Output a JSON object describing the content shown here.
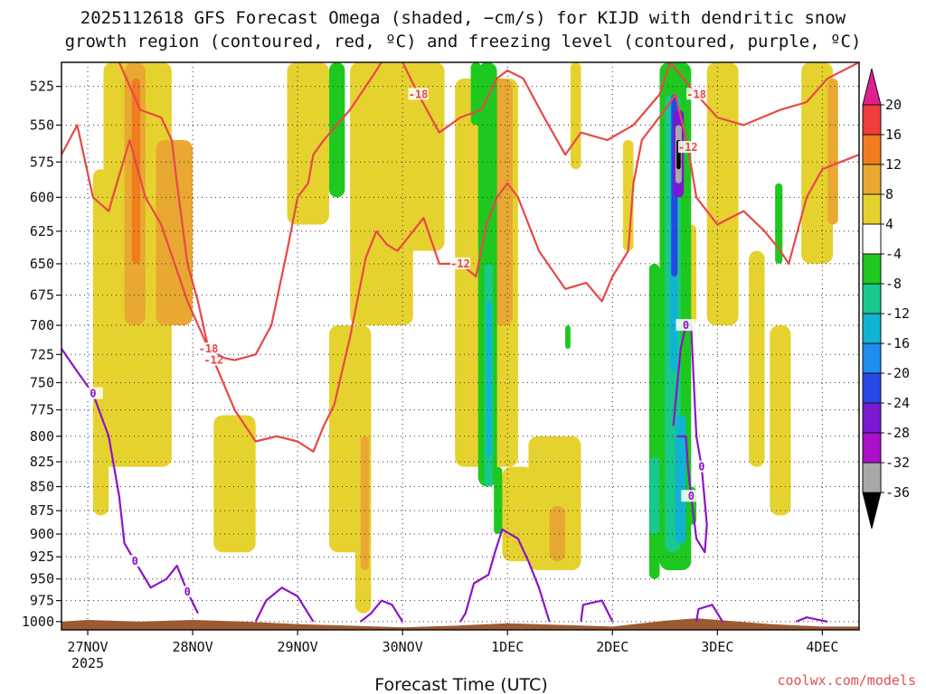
{
  "chart_data": {
    "type": "heatmap",
    "title_line1": "2025112618 GFS Forecast Omega (shaded, −cm/s) for KIJD with dendritic snow",
    "title_line2": "growth region (contoured, red, ºC) and freezing level (contoured, purple, ºC)",
    "xlabel": "Forecast Time (UTC)",
    "x_ticks": [
      "27NOV",
      "28NOV",
      "29NOV",
      "30NOV",
      "1DEC",
      "2DEC",
      "3DEC",
      "4DEC"
    ],
    "x_tick_year": "2025",
    "x_range_days": [
      -0.25,
      7.35
    ],
    "y_ticks": [
      525,
      550,
      575,
      600,
      625,
      650,
      675,
      700,
      725,
      750,
      775,
      800,
      825,
      850,
      875,
      900,
      925,
      950,
      975,
      1000
    ],
    "y_range_hpa": [
      510,
      1010
    ],
    "y_scale": "log",
    "grid": true,
    "colorbar": {
      "position": "right",
      "labels": [
        "20",
        "16",
        "12",
        "8",
        "4",
        "-4",
        "-8",
        "-12",
        "-16",
        "-20",
        "-24",
        "-28",
        "-32",
        "-36"
      ],
      "bands": [
        {
          "range": [
            16,
            20
          ],
          "color": "#f03c3c"
        },
        {
          "range": [
            12,
            16
          ],
          "color": "#f07c1e"
        },
        {
          "range": [
            8,
            12
          ],
          "color": "#e8a832"
        },
        {
          "range": [
            4,
            8
          ],
          "color": "#e6d22e"
        },
        {
          "range": [
            -4,
            4
          ],
          "color": "#ffffff"
        },
        {
          "range": [
            -8,
            -4
          ],
          "color": "#1ec81e"
        },
        {
          "range": [
            -12,
            -8
          ],
          "color": "#18c88c"
        },
        {
          "range": [
            -16,
            -12
          ],
          "color": "#10b4d2"
        },
        {
          "range": [
            -20,
            -16
          ],
          "color": "#1e8cf0"
        },
        {
          "range": [
            -24,
            -20
          ],
          "color": "#2848e6"
        },
        {
          "range": [
            -28,
            -24
          ],
          "color": "#7a18d2"
        },
        {
          "range": [
            -32,
            -28
          ],
          "color": "#aa10c8"
        },
        {
          "range": [
            -36,
            -32
          ],
          "color": "#a8a8a8"
        }
      ],
      "over_color": "#e0208c",
      "under_color": "#000000"
    },
    "omega_regions": [
      {
        "x": [
          0.05,
          0.2
        ],
        "p": [
          580,
          880
        ],
        "v": 6
      },
      {
        "x": [
          0.15,
          0.8
        ],
        "p": [
          510,
          830
        ],
        "v": 6
      },
      {
        "x": [
          0.35,
          0.55
        ],
        "p": [
          510,
          700
        ],
        "v": 10
      },
      {
        "x": [
          0.42,
          0.5
        ],
        "p": [
          520,
          650
        ],
        "v": 14
      },
      {
        "x": [
          0.65,
          1.0
        ],
        "p": [
          560,
          700
        ],
        "v": 8
      },
      {
        "x": [
          1.2,
          1.6
        ],
        "p": [
          780,
          920
        ],
        "v": 5
      },
      {
        "x": [
          1.9,
          2.3
        ],
        "p": [
          510,
          620
        ],
        "v": 5
      },
      {
        "x": [
          2.3,
          2.7
        ],
        "p": [
          700,
          920
        ],
        "v": 5
      },
      {
        "x": [
          2.5,
          3.1
        ],
        "p": [
          510,
          700
        ],
        "v": 5
      },
      {
        "x": [
          2.55,
          2.7
        ],
        "p": [
          720,
          990
        ],
        "v": 5
      },
      {
        "x": [
          2.6,
          2.68
        ],
        "p": [
          800,
          940
        ],
        "v": 9
      },
      {
        "x": [
          3.0,
          3.4
        ],
        "p": [
          510,
          640
        ],
        "v": 5
      },
      {
        "x": [
          3.5,
          4.1
        ],
        "p": [
          520,
          830
        ],
        "v": 5
      },
      {
        "x": [
          3.85,
          4.05
        ],
        "p": [
          520,
          700
        ],
        "v": 9
      },
      {
        "x": [
          3.95,
          4.25
        ],
        "p": [
          830,
          930
        ],
        "v": 5
      },
      {
        "x": [
          4.2,
          4.7
        ],
        "p": [
          800,
          940
        ],
        "v": 5
      },
      {
        "x": [
          4.4,
          4.55
        ],
        "p": [
          870,
          930
        ],
        "v": 9
      },
      {
        "x": [
          4.6,
          4.7
        ],
        "p": [
          510,
          580
        ],
        "v": 5
      },
      {
        "x": [
          5.1,
          5.2
        ],
        "p": [
          560,
          640
        ],
        "v": 5
      },
      {
        "x": [
          5.7,
          5.8
        ],
        "p": [
          620,
          700
        ],
        "v": 5
      },
      {
        "x": [
          5.9,
          6.2
        ],
        "p": [
          510,
          700
        ],
        "v": 5
      },
      {
        "x": [
          6.3,
          6.45
        ],
        "p": [
          640,
          830
        ],
        "v": 5
      },
      {
        "x": [
          6.5,
          6.7
        ],
        "p": [
          700,
          880
        ],
        "v": 5
      },
      {
        "x": [
          6.8,
          7.1
        ],
        "p": [
          510,
          650
        ],
        "v": 5
      },
      {
        "x": [
          7.05,
          7.15
        ],
        "p": [
          520,
          620
        ],
        "v": 9
      },
      {
        "x": [
          3.72,
          3.9
        ],
        "p": [
          510,
          850
        ],
        "v": -6
      },
      {
        "x": [
          3.78,
          3.86
        ],
        "p": [
          650,
          850
        ],
        "v": -10
      },
      {
        "x": [
          3.8,
          3.85
        ],
        "p": [
          680,
          820
        ],
        "v": -14
      },
      {
        "x": [
          3.65,
          3.75
        ],
        "p": [
          510,
          550
        ],
        "v": -6
      },
      {
        "x": [
          2.3,
          2.45
        ],
        "p": [
          510,
          600
        ],
        "v": -6
      },
      {
        "x": [
          3.87,
          3.95
        ],
        "p": [
          830,
          900
        ],
        "v": -6
      },
      {
        "x": [
          5.35,
          5.45
        ],
        "p": [
          650,
          950
        ],
        "v": -6
      },
      {
        "x": [
          5.35,
          5.45
        ],
        "p": [
          820,
          900
        ],
        "v": -10
      },
      {
        "x": [
          5.45,
          5.75
        ],
        "p": [
          510,
          940
        ],
        "v": -6
      },
      {
        "x": [
          5.5,
          5.65
        ],
        "p": [
          530,
          920
        ],
        "v": -10
      },
      {
        "x": [
          5.55,
          5.62
        ],
        "p": [
          530,
          740
        ],
        "v": -16
      },
      {
        "x": [
          5.56,
          5.62
        ],
        "p": [
          530,
          660
        ],
        "v": -21
      },
      {
        "x": [
          5.58,
          5.68
        ],
        "p": [
          540,
          600
        ],
        "v": -26
      },
      {
        "x": [
          5.6,
          5.66
        ],
        "p": [
          550,
          590
        ],
        "v": -34
      },
      {
        "x": [
          5.61,
          5.65
        ],
        "p": [
          560,
          580
        ],
        "v": -40
      },
      {
        "x": [
          5.6,
          5.7
        ],
        "p": [
          780,
          910
        ],
        "v": -14
      },
      {
        "x": [
          5.7,
          5.8
        ],
        "p": [
          850,
          890
        ],
        "v": -6
      },
      {
        "x": [
          4.55,
          4.6
        ],
        "p": [
          700,
          720
        ],
        "v": -6
      },
      {
        "x": [
          6.55,
          6.62
        ],
        "p": [
          590,
          650
        ],
        "v": -6
      }
    ],
    "dgz_contours": [
      {
        "label": "-12",
        "points": [
          [
            -0.25,
            570
          ],
          [
            -0.1,
            550
          ],
          [
            0.05,
            600
          ],
          [
            0.2,
            610
          ],
          [
            0.4,
            560
          ],
          [
            0.55,
            600
          ],
          [
            0.7,
            620
          ],
          [
            0.95,
            680
          ],
          [
            1.2,
            730
          ],
          [
            1.4,
            775
          ],
          [
            1.6,
            805
          ],
          [
            1.8,
            800
          ],
          [
            2.0,
            805
          ],
          [
            2.15,
            815
          ],
          [
            2.25,
            790
          ],
          [
            2.35,
            770
          ],
          [
            2.5,
            710
          ],
          [
            2.65,
            645
          ],
          [
            2.75,
            625
          ],
          [
            2.85,
            635
          ],
          [
            2.95,
            640
          ],
          [
            3.05,
            630
          ],
          [
            3.2,
            615
          ],
          [
            3.35,
            650
          ],
          [
            3.55,
            650
          ],
          [
            3.7,
            660
          ],
          [
            3.8,
            620
          ],
          [
            3.9,
            600
          ],
          [
            4.0,
            590
          ],
          [
            4.1,
            600
          ],
          [
            4.3,
            640
          ],
          [
            4.55,
            670
          ],
          [
            4.75,
            665
          ],
          [
            4.9,
            680
          ],
          [
            5.0,
            660
          ],
          [
            5.15,
            640
          ],
          [
            5.2,
            590
          ],
          [
            5.28,
            560
          ],
          [
            5.5,
            540
          ],
          [
            5.6,
            530
          ],
          [
            5.72,
            565
          ],
          [
            5.8,
            600
          ],
          [
            6.0,
            620
          ],
          [
            6.25,
            610
          ],
          [
            6.45,
            625
          ],
          [
            6.6,
            640
          ],
          [
            6.68,
            650
          ],
          [
            6.85,
            600
          ],
          [
            7.0,
            580
          ],
          [
            7.35,
            570
          ]
        ]
      },
      {
        "label": "-18",
        "points": [
          [
            0.3,
            510
          ],
          [
            0.5,
            540
          ],
          [
            0.7,
            545
          ],
          [
            0.8,
            560
          ],
          [
            0.85,
            590
          ],
          [
            0.95,
            650
          ],
          [
            1.05,
            680
          ],
          [
            1.15,
            720
          ],
          [
            1.3,
            728
          ],
          [
            1.4,
            730
          ],
          [
            1.6,
            725
          ],
          [
            1.75,
            700
          ],
          [
            1.9,
            640
          ],
          [
            2.0,
            600
          ],
          [
            2.1,
            590
          ],
          [
            2.15,
            570
          ],
          [
            2.25,
            560
          ],
          [
            2.5,
            540
          ],
          [
            2.7,
            520
          ],
          [
            2.85,
            505
          ],
          [
            3.0,
            510
          ],
          [
            3.15,
            530
          ],
          [
            3.35,
            555
          ],
          [
            3.55,
            545
          ],
          [
            3.75,
            540
          ],
          [
            3.9,
            520
          ],
          [
            4.0,
            515
          ],
          [
            4.15,
            520
          ],
          [
            4.35,
            545
          ],
          [
            4.55,
            570
          ],
          [
            4.7,
            555
          ],
          [
            4.95,
            560
          ],
          [
            5.2,
            550
          ],
          [
            5.45,
            530
          ],
          [
            5.55,
            510
          ],
          [
            5.8,
            530
          ],
          [
            6.0,
            545
          ],
          [
            6.25,
            550
          ],
          [
            6.6,
            540
          ],
          [
            6.85,
            535
          ],
          [
            7.05,
            520
          ],
          [
            7.35,
            510
          ]
        ]
      }
    ],
    "freezing_contours": [
      {
        "label": "0",
        "points": [
          [
            -0.25,
            720
          ],
          [
            -0.1,
            740
          ],
          [
            0.05,
            760
          ],
          [
            0.2,
            800
          ],
          [
            0.3,
            860
          ],
          [
            0.35,
            910
          ],
          [
            0.45,
            930
          ],
          [
            0.6,
            960
          ],
          [
            0.75,
            950
          ],
          [
            0.85,
            935
          ],
          [
            0.95,
            965
          ],
          [
            1.05,
            990
          ]
        ]
      },
      {
        "label": "",
        "points": [
          [
            1.6,
            1000
          ],
          [
            1.7,
            975
          ],
          [
            1.85,
            960
          ],
          [
            2.0,
            970
          ],
          [
            2.15,
            1000
          ]
        ]
      },
      {
        "label": "",
        "points": [
          [
            2.6,
            1000
          ],
          [
            2.7,
            990
          ],
          [
            2.8,
            975
          ],
          [
            2.9,
            980
          ],
          [
            3.0,
            1000
          ]
        ]
      },
      {
        "label": "",
        "points": [
          [
            3.55,
            1000
          ],
          [
            3.6,
            990
          ],
          [
            3.68,
            955
          ],
          [
            3.82,
            945
          ],
          [
            3.88,
            920
          ],
          [
            3.95,
            895
          ],
          [
            4.1,
            905
          ],
          [
            4.2,
            930
          ],
          [
            4.3,
            960
          ],
          [
            4.4,
            1000
          ]
        ]
      },
      {
        "label": "",
        "points": [
          [
            4.7,
            1000
          ],
          [
            4.72,
            980
          ],
          [
            4.9,
            975
          ],
          [
            5.0,
            1000
          ]
        ]
      },
      {
        "label": "0",
        "points": [
          [
            5.58,
            790
          ],
          [
            5.65,
            720
          ],
          [
            5.7,
            700
          ],
          [
            5.75,
            700
          ],
          [
            5.78,
            760
          ],
          [
            5.8,
            800
          ],
          [
            5.85,
            830
          ],
          [
            5.9,
            890
          ],
          [
            5.88,
            920
          ],
          [
            5.8,
            905
          ],
          [
            5.75,
            860
          ],
          [
            5.72,
            830
          ],
          [
            5.7,
            800
          ],
          [
            5.62,
            800
          ]
        ]
      },
      {
        "label": "",
        "points": [
          [
            5.8,
            1000
          ],
          [
            5.82,
            985
          ],
          [
            5.95,
            980
          ],
          [
            6.05,
            1000
          ]
        ]
      },
      {
        "label": "",
        "points": [
          [
            6.75,
            1000
          ],
          [
            6.85,
            995
          ],
          [
            7.05,
            1000
          ]
        ]
      }
    ],
    "terrain_color": "#9c5a32",
    "terrain_top_hpa": [
      [
        -0.25,
        1000
      ],
      [
        0.0,
        998
      ],
      [
        0.5,
        1000
      ],
      [
        1.0,
        998
      ],
      [
        1.5,
        1000
      ],
      [
        2.0,
        1003
      ],
      [
        2.5,
        1005
      ],
      [
        3.0,
        1007
      ],
      [
        3.5,
        1005
      ],
      [
        4.0,
        1002
      ],
      [
        4.5,
        1004
      ],
      [
        5.0,
        1006
      ],
      [
        5.5,
        999
      ],
      [
        5.8,
        996
      ],
      [
        6.0,
        998
      ],
      [
        6.5,
        1003
      ],
      [
        7.0,
        1006
      ],
      [
        7.35,
        1006
      ]
    ]
  },
  "credit": "coolwx.com/models"
}
